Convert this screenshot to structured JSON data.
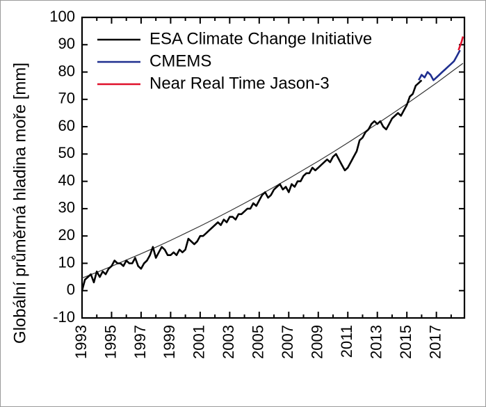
{
  "chart_data": {
    "type": "line",
    "title": "",
    "xlabel": "",
    "ylabel": "Globální průměrná hladina moře [mm]",
    "xlim": [
      1993,
      2018.9
    ],
    "ylim": [
      -10,
      100
    ],
    "x_ticks": [
      "1993",
      "1995",
      "1997",
      "1999",
      "2001",
      "2003",
      "2005",
      "2007",
      "2009",
      "2011",
      "2013",
      "2015",
      "2017"
    ],
    "y_ticks": [
      "100",
      "90",
      "80",
      "70",
      "60",
      "50",
      "40",
      "30",
      "20",
      "10",
      "0",
      "-10"
    ],
    "legend_position": "top-left",
    "series": [
      {
        "name": "ESA Climate Change Initiative",
        "color": "#000000",
        "x": [
          1993.0,
          1993.2,
          1993.4,
          1993.6,
          1993.8,
          1994.0,
          1994.2,
          1994.4,
          1994.6,
          1994.8,
          1995.0,
          1995.2,
          1995.4,
          1995.6,
          1995.8,
          1996.0,
          1996.2,
          1996.4,
          1996.6,
          1996.8,
          1997.0,
          1997.2,
          1997.4,
          1997.6,
          1997.8,
          1998.0,
          1998.2,
          1998.4,
          1998.6,
          1998.8,
          1999.0,
          1999.2,
          1999.4,
          1999.6,
          1999.8,
          2000.0,
          2000.2,
          2000.4,
          2000.6,
          2000.8,
          2001.0,
          2001.2,
          2001.4,
          2001.6,
          2001.8,
          2002.0,
          2002.2,
          2002.4,
          2002.6,
          2002.8,
          2003.0,
          2003.2,
          2003.4,
          2003.6,
          2003.8,
          2004.0,
          2004.2,
          2004.4,
          2004.6,
          2004.8,
          2005.0,
          2005.2,
          2005.4,
          2005.6,
          2005.8,
          2006.0,
          2006.2,
          2006.4,
          2006.6,
          2006.8,
          2007.0,
          2007.2,
          2007.4,
          2007.6,
          2007.8,
          2008.0,
          2008.2,
          2008.4,
          2008.6,
          2008.8,
          2009.0,
          2009.2,
          2009.4,
          2009.6,
          2009.8,
          2010.0,
          2010.2,
          2010.4,
          2010.6,
          2010.8,
          2011.0,
          2011.2,
          2011.4,
          2011.6,
          2011.8,
          2012.0,
          2012.2,
          2012.4,
          2012.6,
          2012.8,
          2013.0,
          2013.2,
          2013.4,
          2013.6,
          2013.8,
          2014.0,
          2014.2,
          2014.4,
          2014.6,
          2014.8,
          2015.0,
          2015.2,
          2015.4,
          2015.6,
          2015.8,
          2016.0
        ],
        "y": [
          0,
          4,
          5,
          6,
          3,
          7,
          5,
          7,
          6,
          8,
          9,
          11,
          10,
          10,
          9,
          11,
          10,
          10,
          12,
          9,
          8,
          10,
          11,
          13,
          16,
          12,
          14,
          16,
          15,
          13,
          13,
          14,
          13,
          15,
          14,
          15,
          19,
          18,
          17,
          18,
          20,
          20,
          21,
          22,
          23,
          24,
          25,
          24,
          26,
          25,
          27,
          27,
          26,
          28,
          28,
          29,
          30,
          30,
          32,
          31,
          33,
          35,
          36,
          34,
          35,
          37,
          38,
          39,
          37,
          38,
          36,
          39,
          38,
          40,
          40,
          42,
          43,
          43,
          45,
          44,
          45,
          46,
          47,
          48,
          47,
          49,
          50,
          48,
          46,
          44,
          45,
          47,
          49,
          51,
          55,
          56,
          58,
          59,
          61,
          62,
          61,
          62,
          60,
          59,
          61,
          63,
          64,
          65,
          64,
          66,
          68,
          71,
          72,
          75,
          76,
          77
        ],
        "stroke_width": 2.6
      },
      {
        "name": "CMEMS",
        "color": "#1f2f8f",
        "x": [
          2015.8,
          2016.0,
          2016.2,
          2016.4,
          2016.6,
          2016.8,
          2017.0,
          2017.2,
          2017.4,
          2017.6,
          2017.8,
          2018.0,
          2018.2,
          2018.4,
          2018.6
        ],
        "y": [
          77,
          79,
          78,
          80,
          79,
          77,
          78,
          79,
          80,
          81,
          82,
          83,
          84,
          86,
          88
        ],
        "stroke_width": 2.6
      },
      {
        "name": "Near Real Time Jason-3",
        "color": "#e0102a",
        "x": [
          2018.5,
          2018.6,
          2018.7,
          2018.8
        ],
        "y": [
          88,
          89.5,
          91,
          93
        ],
        "stroke_width": 2.6
      },
      {
        "name": "",
        "color": "#333333",
        "x": [
          1993.0,
          1994.0,
          1995.0,
          1996.0,
          1997.0,
          1998.0,
          1999.0,
          2000.0,
          2001.0,
          2002.0,
          2003.0,
          2004.0,
          2005.0,
          2006.0,
          2007.0,
          2008.0,
          2009.0,
          2010.0,
          2011.0,
          2012.0,
          2013.0,
          2014.0,
          2015.0,
          2016.0,
          2017.0,
          2018.0,
          2018.8
        ],
        "y": [
          4.6,
          6.7,
          8.9,
          11.2,
          13.5,
          15.9,
          18.4,
          21.0,
          23.6,
          26.3,
          29.1,
          32.0,
          34.9,
          37.9,
          41.0,
          44.2,
          47.4,
          50.7,
          54.1,
          57.6,
          61.1,
          64.7,
          68.4,
          72.2,
          76.0,
          80.0,
          83.2
        ],
        "stroke_width": 1.2
      }
    ]
  }
}
